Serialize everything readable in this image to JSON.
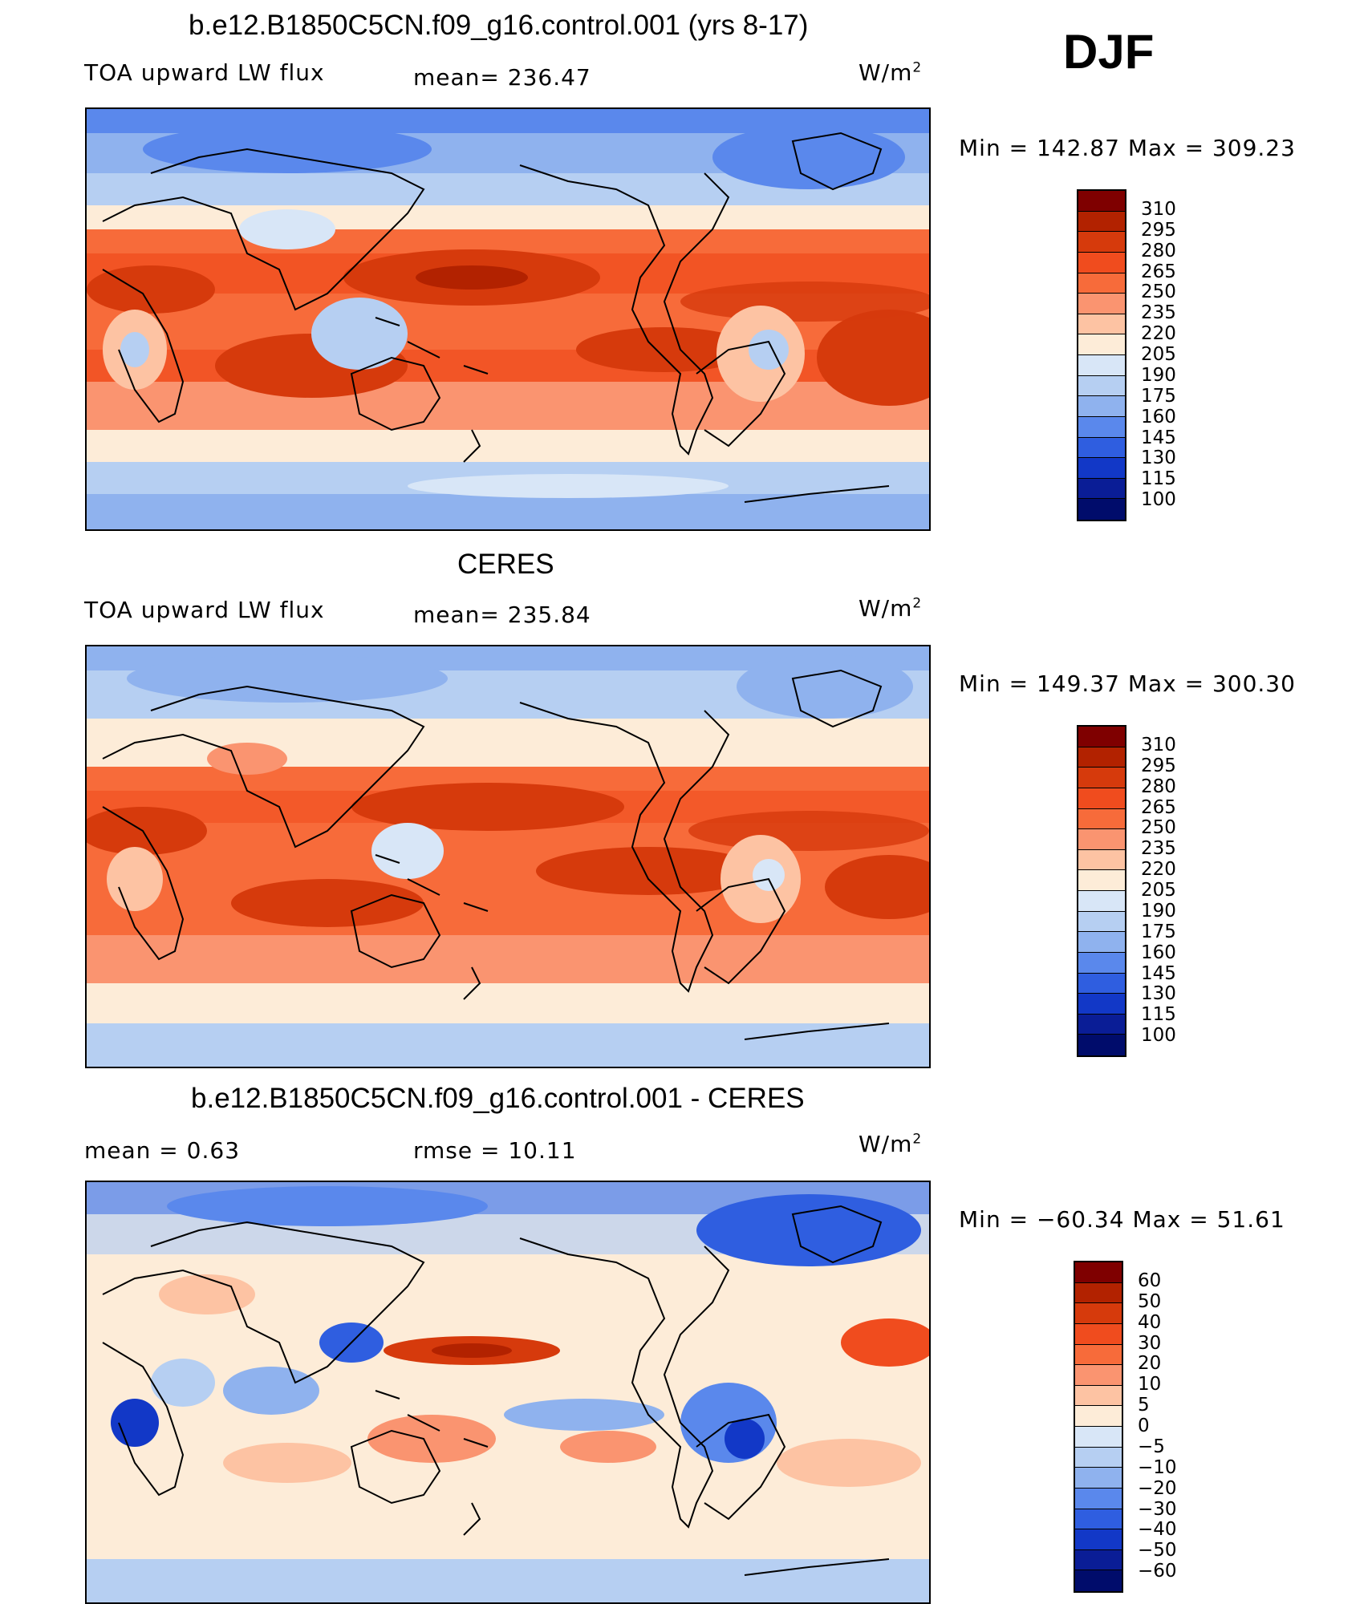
{
  "season": "DJF",
  "panels": [
    {
      "title": "b.e12.B1850C5CN.f09_g16.control.001 (yrs 8-17)",
      "left_label": "TOA upward LW flux",
      "mid_label": "mean=  236.47",
      "units": "W/m",
      "units_sup": "2",
      "minmax": "Min  =  142.87  Max  =  309.23",
      "colorbar": {
        "labels": [
          "310",
          "295",
          "280",
          "265",
          "250",
          "235",
          "220",
          "205",
          "190",
          "175",
          "160",
          "145",
          "130",
          "115",
          "100"
        ],
        "colors": [
          "#7f0000",
          "#b22200",
          "#d63a0c",
          "#f04c1e",
          "#f76b3a",
          "#fa9470",
          "#fdc3a3",
          "#fdecd8",
          "#d8e6f7",
          "#b6cff2",
          "#8fb2ee",
          "#5a88ec",
          "#2f5ee0",
          "#1238c7",
          "#0a1d96",
          "#000c6b"
        ]
      }
    },
    {
      "title": "CERES",
      "left_label": "TOA upward LW flux",
      "mid_label": "mean=  235.84",
      "units": "W/m",
      "units_sup": "2",
      "minmax": "Min  =  149.37  Max  =  300.30",
      "colorbar": {
        "labels": [
          "310",
          "295",
          "280",
          "265",
          "250",
          "235",
          "220",
          "205",
          "190",
          "175",
          "160",
          "145",
          "130",
          "115",
          "100"
        ],
        "colors": [
          "#7f0000",
          "#b22200",
          "#d63a0c",
          "#f04c1e",
          "#f76b3a",
          "#fa9470",
          "#fdc3a3",
          "#fdecd8",
          "#d8e6f7",
          "#b6cff2",
          "#8fb2ee",
          "#5a88ec",
          "#2f5ee0",
          "#1238c7",
          "#0a1d96",
          "#000c6b"
        ]
      }
    },
    {
      "title": "b.e12.B1850C5CN.f09_g16.control.001 - CERES",
      "left_label": "mean =     0.63",
      "mid_label": "rmse  =     10.11",
      "units": "W/m",
      "units_sup": "2",
      "minmax": "Min  =  −60.34  Max  =     51.61",
      "colorbar": {
        "labels": [
          "60",
          "50",
          "40",
          "30",
          "20",
          "10",
          "5",
          "0",
          "−5",
          "−10",
          "−20",
          "−30",
          "−40",
          "−50",
          "−60"
        ],
        "colors": [
          "#7f0000",
          "#b22200",
          "#d63a0c",
          "#f04c1e",
          "#f76b3a",
          "#fa9470",
          "#fdc3a3",
          "#fdecd8",
          "#d8e6f7",
          "#b6cff2",
          "#8fb2ee",
          "#5a88ec",
          "#2f5ee0",
          "#1238c7",
          "#0a1d96",
          "#000c6b"
        ]
      }
    }
  ]
}
